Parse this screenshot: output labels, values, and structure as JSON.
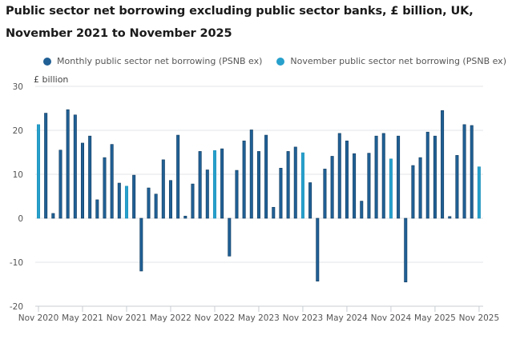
{
  "title_line1": "Public sector net borrowing excluding public sector banks, £ billion, UK,",
  "title_line2": "November 2021 to November 2025",
  "legend": [
    {
      "label": "Monthly public sector net borrowing (PSNB ex)",
      "color": "#206095"
    },
    {
      "label": "November public sector net borrowing (PSNB ex)",
      "color": "#27a0cc"
    }
  ],
  "y_unit_label": "£ billion",
  "chart_data": {
    "type": "bar",
    "title": "Public sector net borrowing excluding public sector banks, £ billion, UK, November 2021 to November 2025",
    "xlabel": "",
    "ylabel": "£ billion",
    "ylim": [
      -20,
      30
    ],
    "yticks": [
      30,
      20,
      10,
      0,
      -10,
      -20
    ],
    "xtick_labels": [
      "Nov 2020",
      "May 2021",
      "Nov 2021",
      "May 2022",
      "Nov 2022",
      "May 2023",
      "Nov 2023",
      "May 2024",
      "Nov 2024",
      "May 2025",
      "Nov 2025"
    ],
    "grid": true,
    "legend_position": "top",
    "categories": [
      "Nov 2020",
      "Dec 2020",
      "Jan 2021",
      "Feb 2021",
      "Mar 2021",
      "Apr 2021",
      "May 2021",
      "Jun 2021",
      "Jul 2021",
      "Aug 2021",
      "Sep 2021",
      "Oct 2021",
      "Nov 2021",
      "Dec 2021",
      "Jan 2022",
      "Feb 2022",
      "Mar 2022",
      "Apr 2022",
      "May 2022",
      "Jun 2022",
      "Jul 2022",
      "Aug 2022",
      "Sep 2022",
      "Oct 2022",
      "Nov 2022",
      "Dec 2022",
      "Jan 2023",
      "Feb 2023",
      "Mar 2023",
      "Apr 2023",
      "May 2023",
      "Jun 2023",
      "Jul 2023",
      "Aug 2023",
      "Sep 2023",
      "Oct 2023",
      "Nov 2023",
      "Dec 2023",
      "Jan 2024",
      "Feb 2024",
      "Mar 2024",
      "Apr 2024",
      "May 2024",
      "Jun 2024",
      "Jul 2024",
      "Aug 2024",
      "Sep 2024",
      "Oct 2024",
      "Nov 2024",
      "Dec 2024",
      "Jan 2025",
      "Feb 2025",
      "Mar 2025",
      "Apr 2025",
      "May 2025",
      "Jun 2025",
      "Jul 2025",
      "Aug 2025",
      "Sep 2025",
      "Oct 2025",
      "Nov 2025"
    ],
    "values": [
      21.3,
      23.9,
      1.1,
      15.5,
      24.7,
      23.5,
      17.1,
      18.7,
      4.2,
      13.8,
      16.8,
      8.0,
      7.3,
      9.8,
      -12.0,
      6.9,
      5.5,
      13.3,
      8.6,
      18.9,
      0.5,
      7.8,
      15.2,
      11.0,
      15.4,
      15.8,
      -8.6,
      10.9,
      17.6,
      20.1,
      15.2,
      18.9,
      2.5,
      11.4,
      15.2,
      16.2,
      14.9,
      8.1,
      -14.3,
      11.2,
      14.1,
      19.3,
      17.6,
      14.7,
      3.9,
      14.8,
      18.7,
      19.3,
      13.5,
      18.7,
      -14.5,
      12.0,
      13.8,
      19.6,
      18.7,
      24.5,
      0.4,
      14.3,
      21.3,
      21.1,
      11.7
    ],
    "series": [
      {
        "name": "Monthly public sector net borrowing (PSNB ex)",
        "color": "#206095",
        "applies_to": "non-November months"
      },
      {
        "name": "November public sector net borrowing (PSNB ex)",
        "color": "#27a0cc",
        "applies_to": "November months"
      }
    ]
  }
}
